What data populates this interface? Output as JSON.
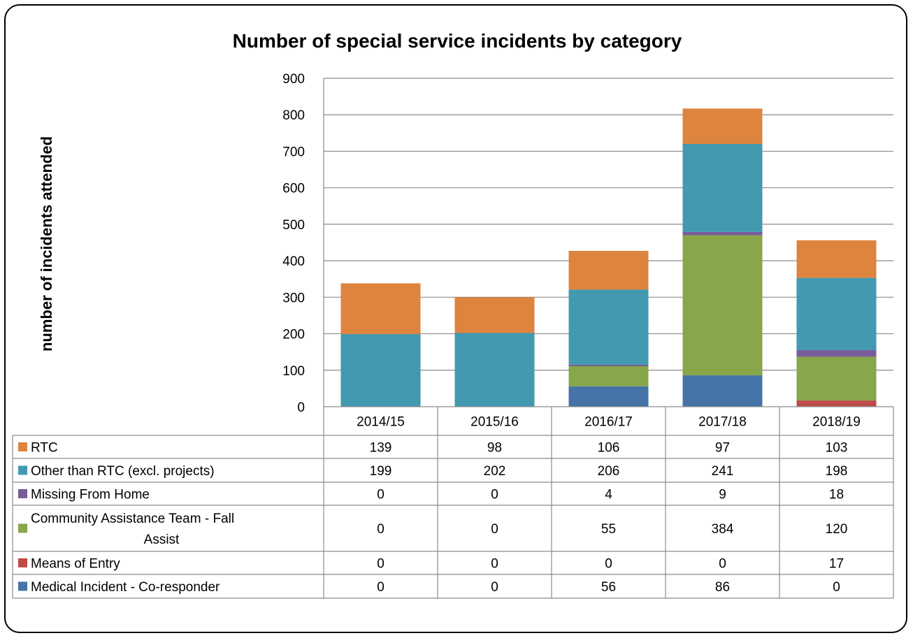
{
  "chart_data": {
    "type": "bar",
    "stacked": true,
    "title": "Number of special service incidents by category",
    "xlabel": "",
    "ylabel": "number of incidents attended",
    "ylim": [
      0,
      900
    ],
    "yticks": [
      0,
      100,
      200,
      300,
      400,
      500,
      600,
      700,
      800,
      900
    ],
    "grid": true,
    "legend": "data-table",
    "categories": [
      "2014/15",
      "2015/16",
      "2016/17",
      "2017/18",
      "2018/19"
    ],
    "series": [
      {
        "name": "RTC",
        "color": "#dd843f",
        "values": [
          139,
          98,
          106,
          97,
          103
        ]
      },
      {
        "name": "Other than RTC (excl. projects)",
        "color": "#4299b0",
        "values": [
          199,
          202,
          206,
          241,
          198
        ]
      },
      {
        "name": "Missing From Home",
        "color": "#7a5c9a",
        "values": [
          0,
          0,
          4,
          9,
          18
        ]
      },
      {
        "name": "Community Assistance Team - Fall Assist",
        "color": "#88a64a",
        "values": [
          0,
          0,
          55,
          384,
          120
        ]
      },
      {
        "name": "Means of Entry",
        "color": "#be4b48",
        "values": [
          0,
          0,
          0,
          0,
          17
        ]
      },
      {
        "name": "Medical Incident - Co-responder",
        "color": "#4674a8",
        "values": [
          0,
          0,
          56,
          86,
          0
        ]
      }
    ],
    "stack_order_bottom_to_top": [
      5,
      4,
      3,
      2,
      1,
      0
    ]
  }
}
